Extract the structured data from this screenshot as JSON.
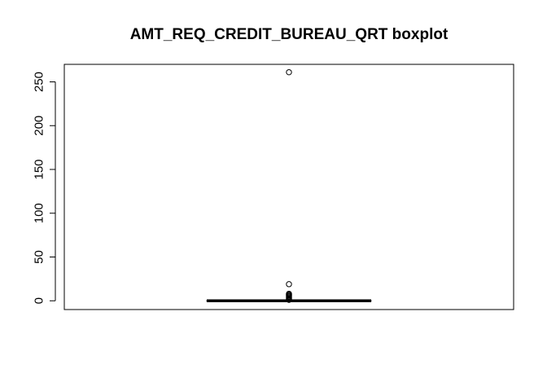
{
  "chart_data": {
    "type": "boxplot",
    "title": "AMT_REQ_CREDIT_BUREAU_QRT boxplot",
    "xlabel": "",
    "ylabel": "",
    "ylim": [
      -10,
      270
    ],
    "yticks": [
      0,
      50,
      100,
      150,
      200,
      250
    ],
    "ytick_labels": [
      "0",
      "50",
      "100",
      "150",
      "200",
      "250"
    ],
    "orientation": "vertical",
    "grid": false,
    "series": [
      {
        "min": 0,
        "q1": 0,
        "median": 0,
        "q3": 0,
        "max": 0,
        "outliers": [
          1,
          2,
          3,
          4,
          5,
          6,
          7,
          8,
          19,
          261
        ]
      }
    ]
  }
}
